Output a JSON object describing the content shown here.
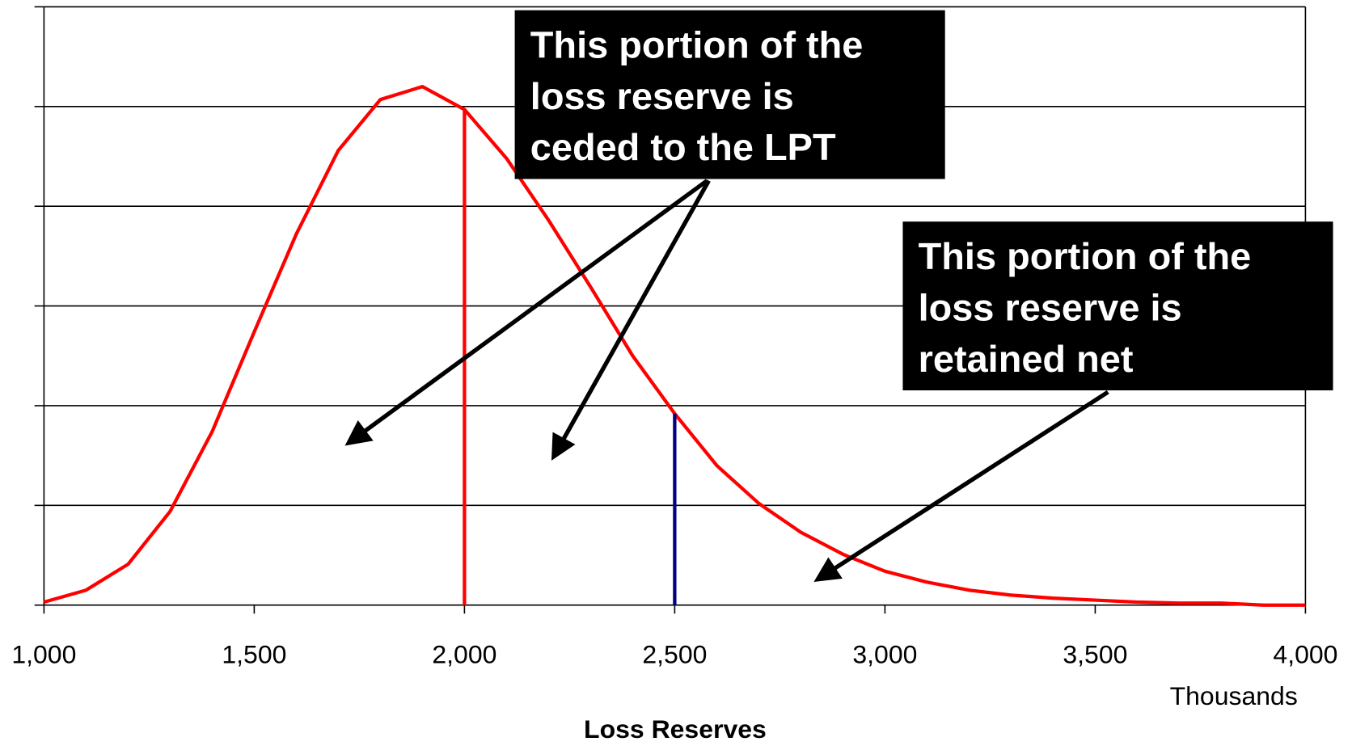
{
  "chart_data": {
    "type": "line",
    "x_label": "Loss Reserves",
    "x_unit_label": "Thousands",
    "x": [
      1000,
      1100,
      1200,
      1300,
      1400,
      1500,
      1600,
      1700,
      1800,
      1900,
      2000,
      2100,
      2200,
      2300,
      2400,
      2500,
      2600,
      2700,
      2800,
      2900,
      3000,
      3100,
      3200,
      3300,
      3400,
      3500,
      3600,
      3700,
      3800,
      3900,
      4000
    ],
    "series": [
      {
        "color": "#ff0000",
        "values": [
          0.03,
          0.15,
          0.41,
          0.94,
          1.74,
          2.74,
          3.72,
          4.56,
          5.07,
          5.2,
          4.97,
          4.48,
          3.86,
          3.19,
          2.5,
          1.92,
          1.4,
          1.02,
          0.73,
          0.51,
          0.34,
          0.23,
          0.15,
          0.1,
          0.07,
          0.05,
          0.03,
          0.02,
          0.02,
          0,
          0
        ]
      }
    ],
    "cutoffs": [
      {
        "x": 2000,
        "color": "#ff0000"
      },
      {
        "x": 2500,
        "color": "#000080"
      }
    ],
    "xlim": [
      1000,
      4000
    ],
    "xticks": [
      {
        "value": 1000,
        "label": "1,000"
      },
      {
        "value": 1500,
        "label": "1,500"
      },
      {
        "value": 2000,
        "label": "2,000"
      },
      {
        "value": 2500,
        "label": "2,500"
      },
      {
        "value": 3000,
        "label": "3,000"
      },
      {
        "value": 3500,
        "label": "3,500"
      },
      {
        "value": 4000,
        "label": "4,000"
      }
    ],
    "ylim": [
      0,
      6
    ],
    "yticks": [
      0,
      1,
      2,
      3,
      4,
      5,
      6
    ],
    "grid": true,
    "annotations": [
      {
        "lines": [
          "This portion of the",
          "loss reserve is",
          "ceded to the LPT"
        ]
      },
      {
        "lines": [
          "This portion of the",
          "loss reserve is",
          "retained net"
        ]
      }
    ]
  }
}
